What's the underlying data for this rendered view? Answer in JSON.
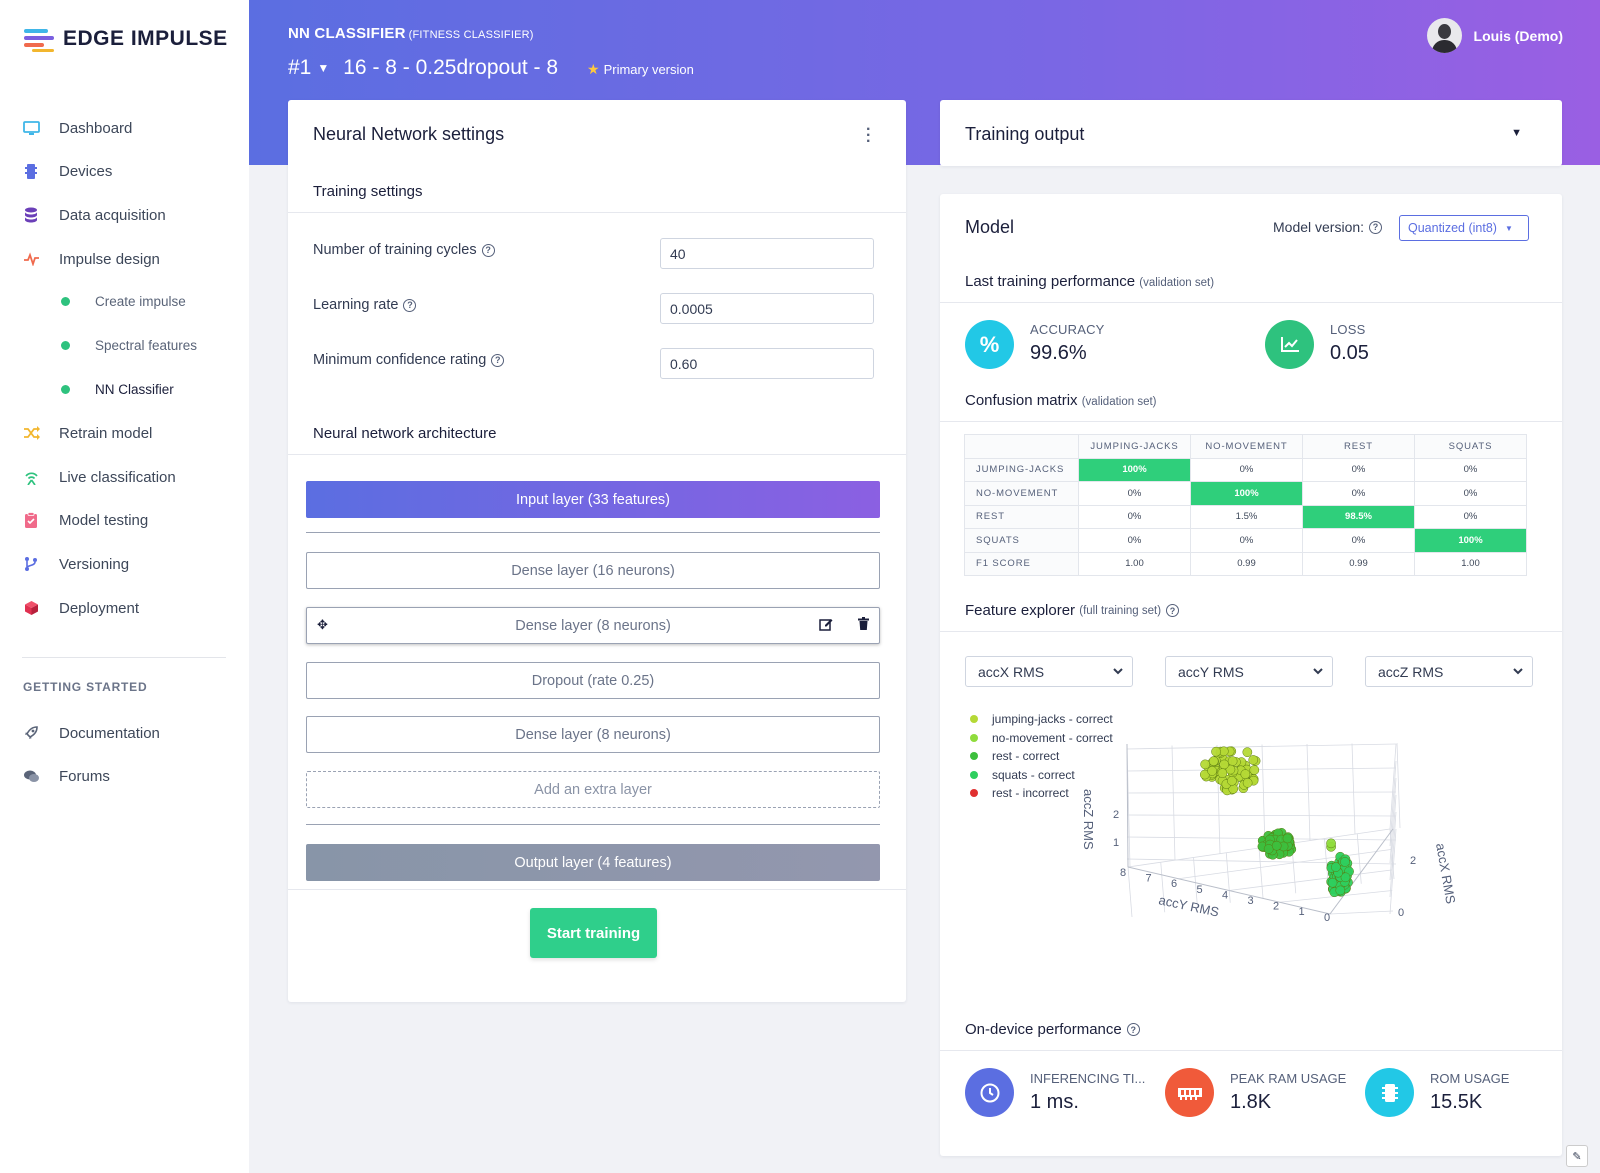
{
  "brand": {
    "name": "EDGE IMPULSE"
  },
  "sidebar": {
    "items": [
      {
        "label": "Dashboard",
        "icon": "monitor-icon",
        "color": "#3fb6e8"
      },
      {
        "label": "Devices",
        "icon": "chip-icon",
        "color": "#5b6ee1"
      },
      {
        "label": "Data acquisition",
        "icon": "database-icon",
        "color": "#6b3fb8"
      },
      {
        "label": "Impulse design",
        "icon": "pulse-icon",
        "color": "#f06a4d"
      }
    ],
    "sub_items": [
      {
        "label": "Create impulse"
      },
      {
        "label": "Spectral features"
      },
      {
        "label": "NN Classifier"
      }
    ],
    "items2": [
      {
        "label": "Retrain model",
        "icon": "shuffle-icon",
        "color": "#f2b62e"
      },
      {
        "label": "Live classification",
        "icon": "signal-icon",
        "color": "#2ec27e"
      },
      {
        "label": "Model testing",
        "icon": "clipboard-check-icon",
        "color": "#f06a8a"
      },
      {
        "label": "Versioning",
        "icon": "branch-icon",
        "color": "#5b6ee1"
      },
      {
        "label": "Deployment",
        "icon": "cube-icon",
        "color": "#e03050"
      }
    ],
    "section_label": "GETTING STARTED",
    "getting_started": [
      {
        "label": "Documentation",
        "icon": "rocket-icon"
      },
      {
        "label": "Forums",
        "icon": "chat-icon"
      }
    ]
  },
  "header": {
    "title": "NN CLASSIFIER",
    "subtitle": "(FITNESS CLASSIFIER)",
    "version_num": "#1",
    "version_name": "16 - 8 - 0.25dropout - 8",
    "primary_label": "Primary version",
    "user_name": "Louis (Demo)"
  },
  "nn_settings": {
    "card_title": "Neural Network settings",
    "training_title": "Training settings",
    "fields": [
      {
        "label": "Number of training cycles",
        "value": "40"
      },
      {
        "label": "Learning rate",
        "value": "0.0005"
      },
      {
        "label": "Minimum confidence rating",
        "value": "0.60"
      }
    ],
    "arch_title": "Neural network architecture",
    "input_layer": "Input layer (33 features)",
    "layers": [
      "Dense layer (16 neurons)",
      "Dense layer (8 neurons)",
      "Dropout (rate 0.25)",
      "Dense layer (8 neurons)"
    ],
    "add_layer": "Add an extra layer",
    "output_layer": "Output layer (4 features)",
    "start_button": "Start training"
  },
  "training_output": {
    "title": "Training output"
  },
  "model": {
    "title": "Model",
    "version_label": "Model version:",
    "version_value": "Quantized (int8)",
    "last_perf_title": "Last training performance",
    "last_perf_note": "(validation set)",
    "accuracy_label": "ACCURACY",
    "accuracy_value": "99.6%",
    "loss_label": "LOSS",
    "loss_value": "0.05",
    "cm_title": "Confusion matrix",
    "cm_note": "(validation set)",
    "cm_columns": [
      "JUMPING-JACKS",
      "NO-MOVEMENT",
      "REST",
      "SQUATS"
    ],
    "cm_rows": [
      {
        "label": "JUMPING-JACKS",
        "cells": [
          "100%",
          "0%",
          "0%",
          "0%"
        ],
        "hl": 0
      },
      {
        "label": "NO-MOVEMENT",
        "cells": [
          "0%",
          "100%",
          "0%",
          "0%"
        ],
        "hl": 1
      },
      {
        "label": "REST",
        "cells": [
          "0%",
          "1.5%",
          "98.5%",
          "0%"
        ],
        "hl": 2
      },
      {
        "label": "SQUATS",
        "cells": [
          "0%",
          "0%",
          "0%",
          "100%"
        ],
        "hl": 3
      },
      {
        "label": "F1 SCORE",
        "cells": [
          "1.00",
          "0.99",
          "0.99",
          "1.00"
        ],
        "hl": -1
      }
    ],
    "fx_title": "Feature explorer",
    "fx_note": "(full training set)",
    "fx_selects": [
      "accX RMS",
      "accY RMS",
      "accZ RMS"
    ],
    "legend": [
      {
        "label": "jumping-jacks - correct",
        "color": "#b5d936"
      },
      {
        "label": "no-movement - correct",
        "color": "#8fdc3c"
      },
      {
        "label": "rest - correct",
        "color": "#3dbf3d"
      },
      {
        "label": "squats - correct",
        "color": "#2ecf5e"
      },
      {
        "label": "rest - incorrect",
        "color": "#e03030"
      }
    ],
    "perf_title": "On-device performance",
    "perf": [
      {
        "label": "INFERENCING TI...",
        "value": "1 ms.",
        "icon": "clock-icon",
        "color": "#5b6ee1"
      },
      {
        "label": "PEAK RAM USAGE",
        "value": "1.8K",
        "icon": "ram-icon",
        "color": "#f05a3a"
      },
      {
        "label": "ROM USAGE",
        "value": "15.5K",
        "icon": "chip-icon",
        "color": "#22c8e6"
      }
    ]
  },
  "chart_data": {
    "type": "scatter",
    "xlabel": "accX RMS",
    "ylabel": "accY RMS",
    "zlabel": "accZ RMS",
    "y_ticks": [
      "8",
      "7",
      "6",
      "5",
      "4",
      "3",
      "2",
      "1",
      "0"
    ],
    "z_ticks": [
      "2",
      "1"
    ],
    "x_ticks": [
      "0",
      "2"
    ],
    "series": [
      {
        "name": "jumping-jacks - correct",
        "color": "#b5d936"
      },
      {
        "name": "no-movement - correct",
        "color": "#8fdc3c"
      },
      {
        "name": "rest - correct",
        "color": "#3dbf3d"
      },
      {
        "name": "squats - correct",
        "color": "#2ecf5e"
      },
      {
        "name": "rest - incorrect",
        "color": "#e03030"
      }
    ]
  }
}
